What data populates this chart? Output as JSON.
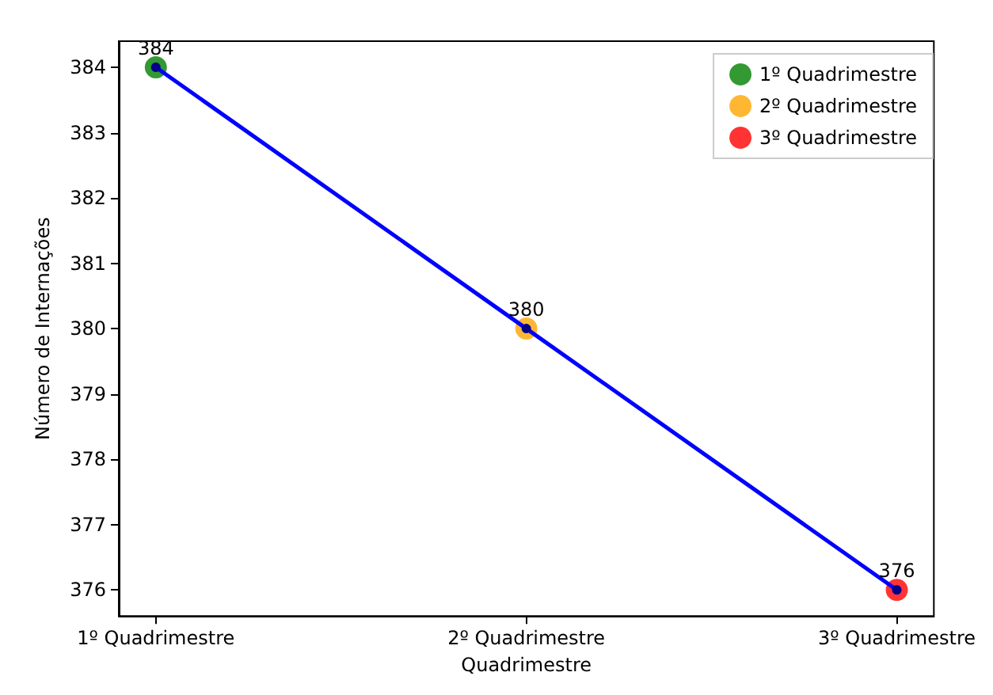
{
  "chart_data": {
    "type": "scatter",
    "xlabel": "Quadrimestre",
    "ylabel": "Número de Internações",
    "categories": [
      "1º Quadrimestre",
      "2º Quadrimestre",
      "3º Quadrimestre"
    ],
    "series": [
      {
        "name": "1º Quadrimestre",
        "color": "#008000",
        "x": [
          "1º Quadrimestre"
        ],
        "values": [
          384
        ]
      },
      {
        "name": "2º Quadrimestre",
        "color": "#ffa500",
        "x": [
          "2º Quadrimestre"
        ],
        "values": [
          380
        ]
      },
      {
        "name": "3º Quadrimestre",
        "color": "#ff0000",
        "x": [
          "3º Quadrimestre"
        ],
        "values": [
          376
        ]
      },
      {
        "type": "line",
        "color": "#0000ff",
        "values": [
          384,
          380,
          376
        ],
        "value_labels": [
          "384",
          "380",
          "376"
        ]
      }
    ],
    "ylim": [
      375.6,
      384.4
    ],
    "yticks": [
      376,
      377,
      378,
      379,
      380,
      381,
      382,
      383,
      384
    ],
    "grid": false,
    "legend": "top right",
    "marker": "circle",
    "line_style": "solid"
  }
}
